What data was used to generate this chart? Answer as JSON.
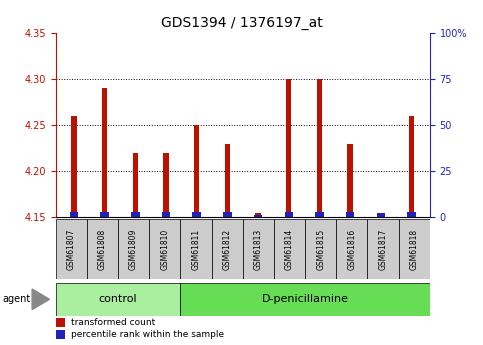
{
  "title": "GDS1394 / 1376197_at",
  "samples": [
    "GSM61807",
    "GSM61808",
    "GSM61809",
    "GSM61810",
    "GSM61811",
    "GSM61812",
    "GSM61813",
    "GSM61814",
    "GSM61815",
    "GSM61816",
    "GSM61817",
    "GSM61818"
  ],
  "transformed_count": [
    4.26,
    4.29,
    4.22,
    4.22,
    4.25,
    4.23,
    4.155,
    4.3,
    4.3,
    4.23,
    4.152,
    4.26
  ],
  "percentile_rank_raw": [
    3,
    3,
    3,
    3,
    3,
    3,
    1.5,
    3,
    3,
    3,
    2.5,
    3
  ],
  "bar_bottom": 4.15,
  "ylim_left": [
    4.15,
    4.35
  ],
  "ylim_right": [
    0,
    100
  ],
  "yticks_left": [
    4.15,
    4.2,
    4.25,
    4.3,
    4.35
  ],
  "yticks_right": [
    0,
    25,
    50,
    75,
    100
  ],
  "ytick_labels_right": [
    "0",
    "25",
    "50",
    "75",
    "100%"
  ],
  "red_color": "#BB1100",
  "blue_color": "#2222BB",
  "groups": [
    {
      "label": "control",
      "start": 0,
      "end": 3,
      "color": "#AAEEA0"
    },
    {
      "label": "D-penicillamine",
      "start": 4,
      "end": 11,
      "color": "#66DD55"
    }
  ],
  "legend_items": [
    {
      "color": "#BB1100",
      "label": "transformed count"
    },
    {
      "color": "#2222BB",
      "label": "percentile rank within the sample"
    }
  ],
  "bar_width": 0.5,
  "plot_bg": "#FFFFFF",
  "title_fontsize": 10,
  "tick_fontsize": 7,
  "label_fontsize": 8,
  "sample_fontsize": 5.5
}
